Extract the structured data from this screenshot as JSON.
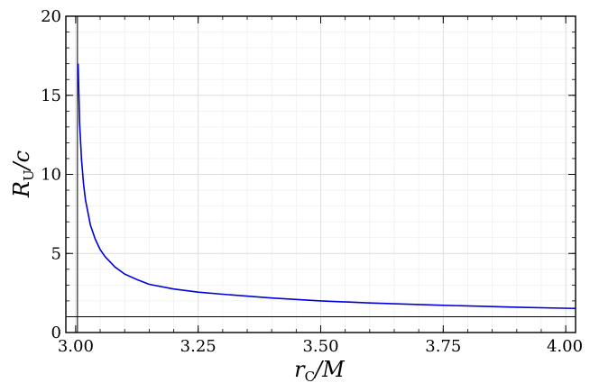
{
  "chart_data": {
    "type": "line",
    "xlabel": "r_C/M",
    "ylabel": "R_U/c",
    "xlim": [
      2.98,
      4.02
    ],
    "ylim": [
      0,
      20
    ],
    "xticks": [
      3.0,
      3.25,
      3.5,
      3.75,
      4.0
    ],
    "xtick_labels": [
      "3.00",
      "3.25",
      "3.50",
      "3.75",
      "4.00"
    ],
    "yticks": [
      0,
      5,
      10,
      15,
      20
    ],
    "ytick_labels": [
      "0",
      "5",
      "10",
      "15",
      "20"
    ],
    "grid": true,
    "legend": "none",
    "series": [
      {
        "color": "#0000dd",
        "x": [
          3.005,
          3.008,
          3.012,
          3.016,
          3.02,
          3.03,
          3.04,
          3.05,
          3.06,
          3.08,
          3.1,
          3.125,
          3.15,
          3.2,
          3.25,
          3.3,
          3.4,
          3.5,
          3.6,
          3.75,
          3.9,
          4.02
        ],
        "y": [
          17.0,
          13.3,
          10.9,
          9.4,
          8.4,
          6.8,
          5.9,
          5.25,
          4.8,
          4.15,
          3.7,
          3.35,
          3.05,
          2.75,
          2.55,
          2.42,
          2.18,
          2.0,
          1.87,
          1.72,
          1.6,
          1.52
        ]
      }
    ],
    "reference_lines": [
      {
        "orientation": "vertical",
        "value": 3.0,
        "color": "#000000"
      },
      {
        "orientation": "horizontal",
        "value": 1.0,
        "color": "#000000"
      }
    ]
  }
}
